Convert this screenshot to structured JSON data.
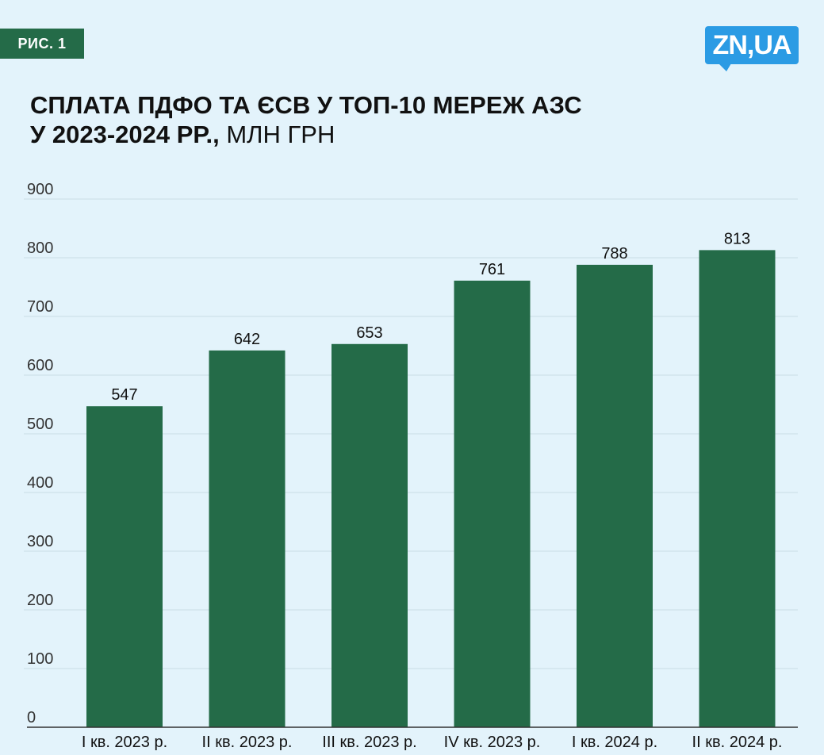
{
  "badge": {
    "label": "РИС. 1"
  },
  "logo": {
    "text": "ZN,UA"
  },
  "title": {
    "main_line1": "СПЛАТА ПДФО ТА ЄСВ У ТОП-10 МЕРЕЖ АЗС",
    "main_line2": "У 2023-2024 РР.,",
    "unit": " МЛН ГРН"
  },
  "colors": {
    "bar": "#246b48",
    "background": "#e3f3fb",
    "grid": "#c8dde6",
    "axis": "#333333",
    "logo": "#2b9be4"
  },
  "chart_data": {
    "type": "bar",
    "title": "СПЛАТА ПДФО ТА ЄСВ У ТОП-10 МЕРЕЖ АЗС У 2023-2024 РР., МЛН ГРН",
    "categories": [
      "I кв. 2023 р.",
      "II кв. 2023 р.",
      "III кв. 2023 р.",
      "IV кв. 2023 р.",
      "I кв. 2024 р.",
      "II кв. 2024 р."
    ],
    "values": [
      547,
      642,
      653,
      761,
      788,
      813
    ],
    "ylim": [
      0,
      900
    ],
    "yticks": [
      0,
      100,
      200,
      300,
      400,
      500,
      600,
      700,
      800,
      900
    ],
    "grid": true,
    "data_labels": true,
    "xlabel": "",
    "ylabel": ""
  }
}
